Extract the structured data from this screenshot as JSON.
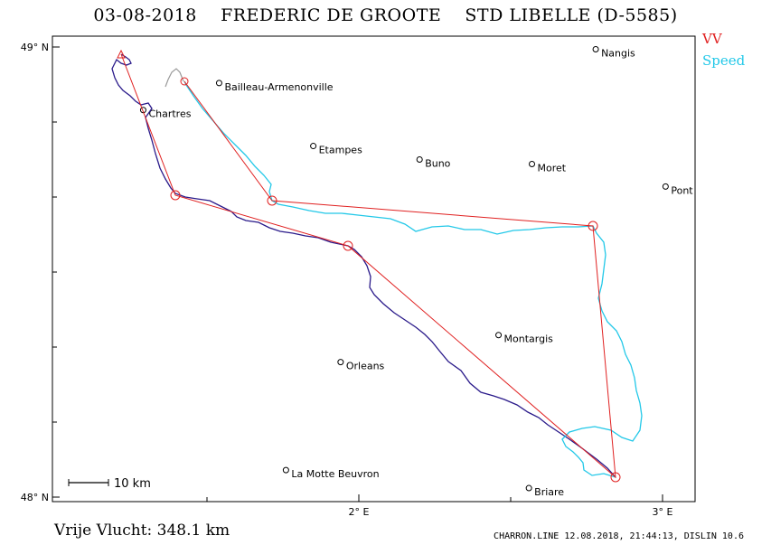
{
  "title": {
    "date": "03-08-2018",
    "pilot": "FREDERIC DE GROOTE",
    "glider": "STD LIBELLE (D-5585)"
  },
  "legend": {
    "vv_label": "VV",
    "speed_label": "Speed",
    "vv_color": "#e02020",
    "speed_color": "#22c8e8"
  },
  "colors": {
    "track_vv": "#2a1a8a",
    "track_speed": "#22c8e8",
    "task": "#e02020",
    "gap": "#9a9a9a"
  },
  "axes": {
    "lat_labels": [
      {
        "lat": 49,
        "text": "49° N"
      },
      {
        "lat": 48,
        "text": "48° N"
      }
    ],
    "lon_labels": [
      {
        "lon": 2,
        "text": "2° E"
      },
      {
        "lon": 3,
        "text": "3° E"
      }
    ]
  },
  "towns": [
    {
      "name": "Nangis",
      "lon": 2.78,
      "lat": 48.995
    },
    {
      "name": "Bailleau-Armenonville",
      "lon": 1.54,
      "lat": 48.92
    },
    {
      "name": "Chartres",
      "lon": 1.29,
      "lat": 48.86
    },
    {
      "name": "Etampes",
      "lon": 1.85,
      "lat": 48.78
    },
    {
      "name": "Buno",
      "lon": 2.2,
      "lat": 48.75
    },
    {
      "name": "Moret",
      "lon": 2.57,
      "lat": 48.74
    },
    {
      "name": "Pont",
      "lon": 3.01,
      "lat": 48.69
    },
    {
      "name": "Montargis",
      "lon": 2.46,
      "lat": 48.36
    },
    {
      "name": "Orleans",
      "lon": 1.94,
      "lat": 48.3
    },
    {
      "name": "La Motte Beuvron",
      "lon": 1.76,
      "lat": 48.06
    },
    {
      "name": "Briare",
      "lon": 2.56,
      "lat": 48.02
    }
  ],
  "scale_bar": {
    "label": "10 km"
  },
  "distance_text": "Vrije Vlucht:  348.1 km",
  "footer": "CHARRON.LINE 12.08.2018, 21:44:13, DISLIN 10.6"
}
